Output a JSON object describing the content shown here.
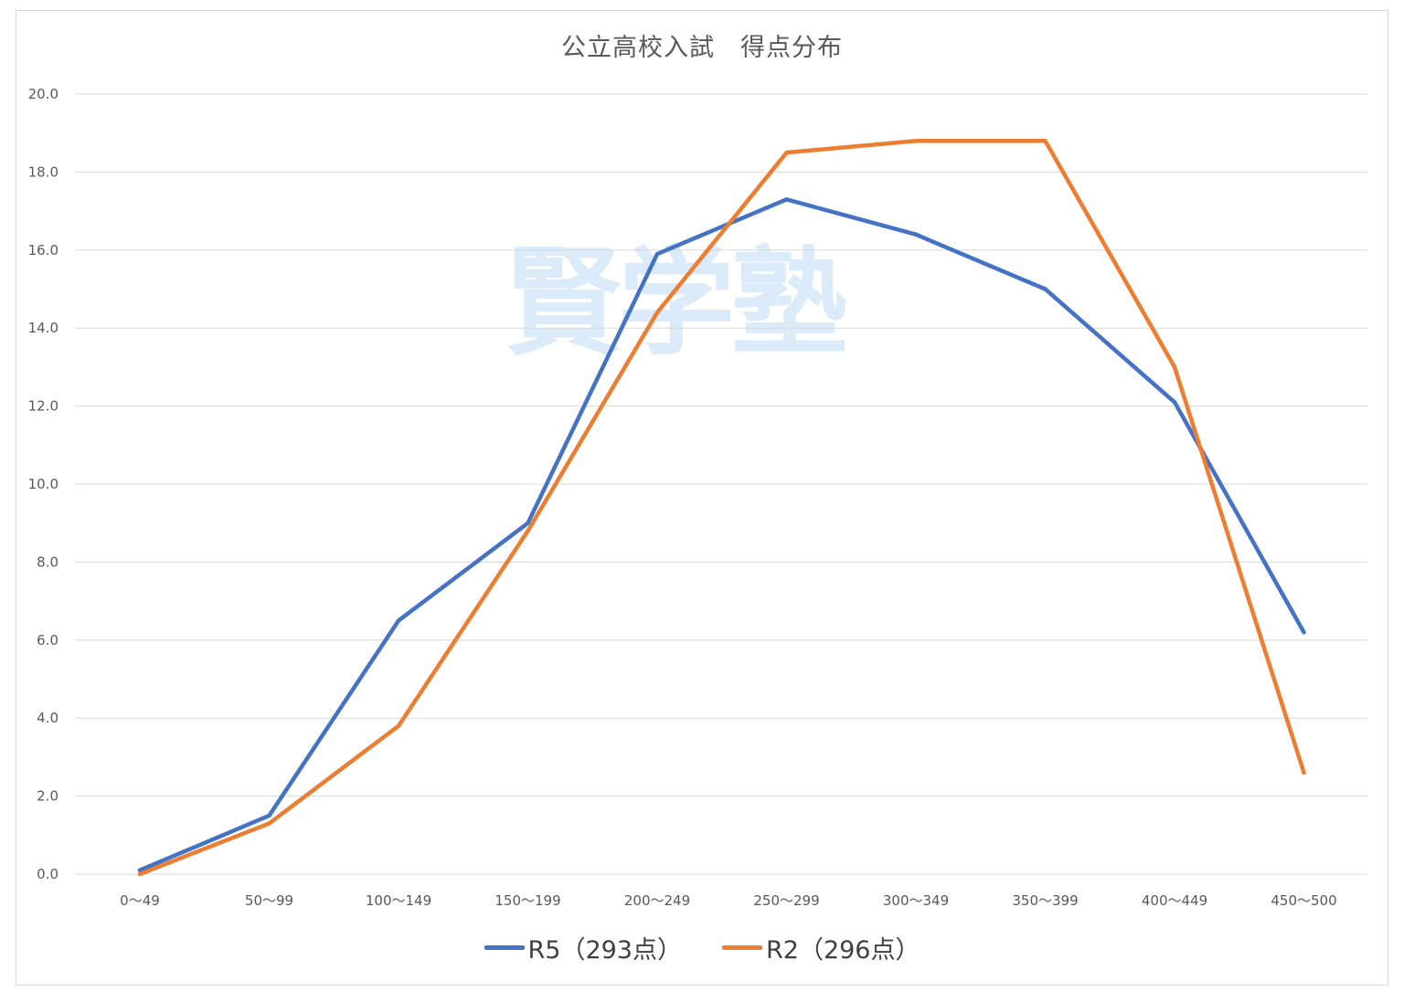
{
  "watermark": "賢学塾",
  "chart_data": {
    "type": "line",
    "title": "公立高校入試　得点分布",
    "categories": [
      "0～49",
      "50～99",
      "100～149",
      "150～199",
      "200～249",
      "250～299",
      "300～349",
      "350～399",
      "400～449",
      "450～500"
    ],
    "series": [
      {
        "name": "R5（293点）",
        "color": "#4472c4",
        "values": [
          0.1,
          1.5,
          6.5,
          9.0,
          15.9,
          17.3,
          16.4,
          15.0,
          12.1,
          6.2
        ]
      },
      {
        "name": "R2（296点）",
        "color": "#ed7d31",
        "values": [
          0.0,
          1.3,
          3.8,
          8.8,
          14.4,
          18.5,
          18.8,
          18.8,
          13.0,
          2.6
        ]
      }
    ],
    "ylim": [
      0,
      20
    ],
    "yticks": [
      "0.0",
      "2.0",
      "4.0",
      "6.0",
      "8.0",
      "10.0",
      "12.0",
      "14.0",
      "16.0",
      "18.0",
      "20.0"
    ],
    "grid": true,
    "legend": "bottom"
  }
}
